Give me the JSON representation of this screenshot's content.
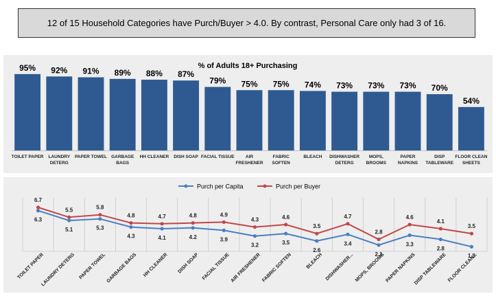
{
  "headline": "12 of 15 Household Categories have Purch/Buyer > 4.0.  By contrast, Personal Care only had 3 of 16.",
  "colors": {
    "bar": "#2f5a91",
    "capita": "#4a7ec4",
    "buyer": "#c0474a",
    "panel": "#eeeeee",
    "headline_bg": "#d9d9d9"
  },
  "chart_data": [
    {
      "type": "bar",
      "title": "% of Adults 18+ Purchasing",
      "categories": [
        [
          "TOILET PAPER"
        ],
        [
          "LAUNDRY",
          "DETERG"
        ],
        [
          "PAPER TOWEL"
        ],
        [
          "GARBAGE",
          "BAGS"
        ],
        [
          "HH CLEANER"
        ],
        [
          "DISH SOAP"
        ],
        [
          "FACIAL TISSUE"
        ],
        [
          "AIR",
          "FRESHENER"
        ],
        [
          "FABRIC",
          "SOFTEN"
        ],
        [
          "BLEACH"
        ],
        [
          "DISHWASHER",
          "DETERG"
        ],
        [
          "MOPS,",
          "BROOMS"
        ],
        [
          "PAPER",
          "NAPKINS"
        ],
        [
          "DISP",
          "TABLEWARE"
        ],
        [
          "FLOOR CLEAN",
          "SHEETS"
        ]
      ],
      "values": [
        95,
        92,
        91,
        89,
        88,
        87,
        79,
        75,
        75,
        74,
        73,
        73,
        73,
        70,
        54
      ],
      "value_labels": [
        "95%",
        "92%",
        "91%",
        "89%",
        "88%",
        "87%",
        "79%",
        "75%",
        "75%",
        "74%",
        "73%",
        "73%",
        "73%",
        "70%",
        "54%"
      ],
      "ylim": [
        0,
        100
      ],
      "grid": false
    },
    {
      "type": "line",
      "categories": [
        "TOILET PAPER",
        "LAUNDRY DETERG",
        "PAPER TOWEL",
        "GARBAGE BAGS",
        "HH CLEANER",
        "DISH SOAP",
        "FACIAL TISSUE",
        "AIR FRESHENER",
        "FABRIC SOFTEN",
        "BLEACH",
        "DISHWASHER...",
        "MOPS, BROOMS",
        "PAPER NAPKINS",
        "DISP TABLEWARE",
        "FLOOR CLEAN..."
      ],
      "legend_position": "top",
      "grid": "vertical",
      "ylim": [
        1.5,
        7.2
      ],
      "series": [
        {
          "name": "Purch per Capita",
          "values": [
            6.3,
            5.1,
            5.3,
            4.3,
            4.1,
            4.2,
            3.9,
            3.2,
            3.5,
            2.6,
            3.4,
            2.1,
            3.3,
            2.8,
            1.9
          ],
          "labels": [
            "6.3",
            "5.1",
            "5.3",
            "4.3",
            "4.1",
            "4.2",
            "3.9",
            "3.2",
            "3.5",
            "2.6",
            "3.4",
            "2.1",
            "3.3",
            "2.8",
            "1.9"
          ],
          "label_position": "below"
        },
        {
          "name": "Purch per Buyer",
          "values": [
            6.7,
            5.5,
            5.8,
            4.8,
            4.7,
            4.8,
            4.9,
            4.3,
            4.6,
            3.5,
            4.7,
            2.8,
            4.6,
            4.1,
            3.5
          ],
          "labels": [
            "6.7",
            "5.5",
            "5.8",
            "4.8",
            "4.7",
            "4.8",
            "4.9",
            "4.3",
            "4.6",
            "3.5",
            "4.7",
            "2.8",
            "4.6",
            "4.1",
            "3.5"
          ],
          "label_position": "above"
        }
      ]
    }
  ]
}
